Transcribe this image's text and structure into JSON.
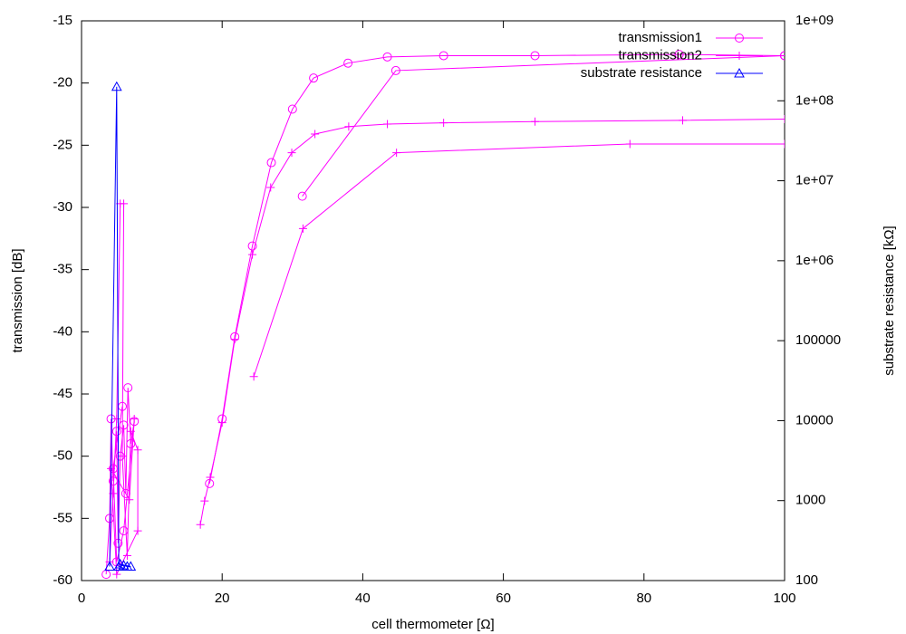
{
  "chart_data": {
    "type": "line",
    "xlabel": "cell thermometer [Ω]",
    "ylabel": "transmission [dB]",
    "y2label": "substrate resistance [kΩ]",
    "xlim": [
      0,
      100
    ],
    "xticks": [
      0,
      20,
      40,
      60,
      80,
      100
    ],
    "ylim": [
      -60,
      -15
    ],
    "yticks": [
      -60,
      -55,
      -50,
      -45,
      -40,
      -35,
      -30,
      -25,
      -20,
      -15
    ],
    "y2lim": [
      100,
      1000000000
    ],
    "y2log": true,
    "y2ticks": [
      100,
      1000,
      10000,
      100000,
      {
        "value": 1000000,
        "label": "1e+06"
      },
      {
        "value": 10000000,
        "label": "1e+07"
      },
      {
        "value": 100000000,
        "label": "1e+08"
      },
      {
        "value": 1000000000,
        "label": "1e+09"
      }
    ],
    "legend": "top-right",
    "series": [
      {
        "name": "transmission1",
        "color": "#ff00ff",
        "marker": "circle",
        "x": [
          3.5,
          4,
          4.2,
          4.5,
          5,
          5.2,
          5.5,
          6,
          6.3,
          6.6,
          7,
          7.5,
          6,
          5,
          4.5,
          5.8,
          null,
          18.2,
          20,
          21.8,
          24.3,
          27,
          30,
          33,
          37.9,
          43.5,
          51.5,
          64.5,
          85,
          100,
          null,
          31.4,
          44.7,
          100
        ],
        "values": [
          -59.5,
          -55,
          -47,
          -52,
          -48,
          -57,
          -50,
          -47.5,
          -53,
          -44.5,
          -49,
          -47.2,
          -56,
          -58.5,
          -51,
          -46,
          null,
          -52.2,
          -47,
          -40.4,
          -33.1,
          -26.4,
          -22.1,
          -19.6,
          -18.4,
          -17.9,
          -17.8,
          -17.8,
          -17.7,
          -17.8,
          null,
          -29.1,
          -19,
          -17.8
        ]
      },
      {
        "name": "transmission2",
        "color": "#ff00ff",
        "marker": "plus",
        "x": [
          4,
          4.5,
          5,
          5.5,
          6,
          5.8,
          6.5,
          7,
          8,
          8,
          5,
          4.2,
          6.8,
          7.5,
          null,
          16.9,
          17.5,
          18.3,
          20,
          21.8,
          24.3,
          26.9,
          29.9,
          33.2,
          38,
          43.5,
          51.5,
          64.5,
          85.5,
          100,
          null,
          24.5,
          31.5,
          44.8,
          78,
          100
        ],
        "values": [
          -58.5,
          -53,
          -47,
          -29.7,
          -29.7,
          -50,
          -58,
          -48,
          -49.5,
          -56,
          -59.5,
          -51,
          -53.5,
          -47,
          null,
          -55.5,
          -53.6,
          -51.7,
          -47.3,
          -40.6,
          -33.8,
          -28.4,
          -25.6,
          -24.1,
          -23.5,
          -23.3,
          -23.2,
          -23.1,
          -23,
          -22.9,
          null,
          -43.6,
          -31.7,
          -25.6,
          -24.9,
          -24.9
        ]
      },
      {
        "name": "substrate resistance",
        "color": "#0000ff",
        "marker": "triangle",
        "axis": "y2",
        "x": [
          4,
          5,
          5.3,
          6,
          6.5,
          7,
          5.5
        ],
        "values": [
          150,
          150000000,
          150,
          155,
          150,
          150,
          160
        ]
      }
    ]
  }
}
